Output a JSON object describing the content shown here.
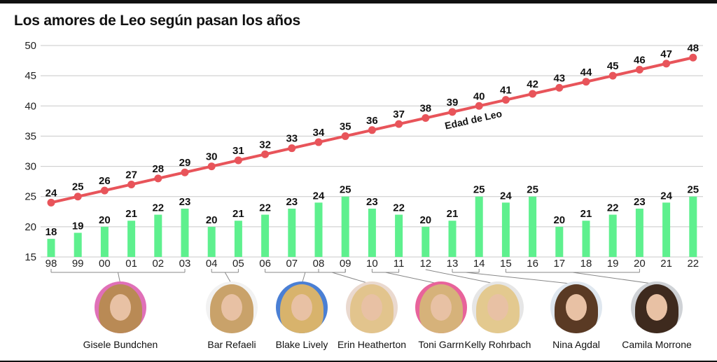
{
  "title": "Los amores de Leo según pasan los años",
  "chart_data": {
    "type": "bar",
    "categories": [
      "98",
      "99",
      "00",
      "01",
      "02",
      "03",
      "04",
      "05",
      "06",
      "07",
      "08",
      "09",
      "10",
      "11",
      "12",
      "13",
      "14",
      "15",
      "16",
      "17",
      "18",
      "19",
      "20",
      "21",
      "22"
    ],
    "ylim": [
      15,
      50
    ],
    "yticks": [
      15,
      20,
      25,
      30,
      35,
      40,
      45,
      50
    ],
    "grid": true,
    "series": [
      {
        "kind": "bar",
        "values": [
          18,
          19,
          20,
          21,
          22,
          23,
          20,
          21,
          22,
          23,
          24,
          25,
          23,
          22,
          20,
          21,
          25,
          24,
          25,
          20,
          21,
          22,
          23,
          24,
          25
        ]
      },
      {
        "kind": "line",
        "name": "Edad de Leo",
        "values": [
          24,
          25,
          26,
          27,
          28,
          29,
          30,
          31,
          32,
          33,
          34,
          35,
          36,
          37,
          38,
          39,
          40,
          41,
          42,
          43,
          44,
          45,
          46,
          47,
          48
        ]
      }
    ]
  },
  "colors": {
    "bar": "#5ef08e",
    "line": "#e8545a",
    "grid": "#c8c8c8",
    "text": "#111111",
    "bracket": "#888888"
  },
  "people": [
    {
      "name": "Gisele Bundchen",
      "from": 0,
      "to": 5,
      "avatar_bg": "#e070b8",
      "hair": "#b98a55"
    },
    {
      "name": "Bar Refaeli",
      "from": 6,
      "to": 7,
      "avatar_bg": "#f2f2f2",
      "hair": "#c9a26a"
    },
    {
      "name": "Blake Lively",
      "from": 8,
      "to": 11,
      "avatar_bg": "#4a7fd4",
      "hair": "#d8b36c"
    },
    {
      "name": "Erin Heatherton",
      "from": 10,
      "to": 11,
      "avatar_bg": "#ead9cf",
      "hair": "#e2c48d"
    },
    {
      "name": "Toni Garrn",
      "from": 12,
      "to": 13,
      "avatar_bg": "#e8639b",
      "hair": "#d6b27a"
    },
    {
      "name": "Kelly Rohrbach",
      "from": 14,
      "to": 14,
      "avatar_bg": "#e6e6e6",
      "hair": "#e3c98f"
    },
    {
      "name": "Nina Agdal",
      "from": 15,
      "to": 16,
      "avatar_bg": "#dfe7ef",
      "hair": "#5a3a24"
    },
    {
      "name": "Camila Morrone",
      "from": 17,
      "to": 22,
      "avatar_bg": "#cfd2d6",
      "hair": "#3e2a1e"
    }
  ]
}
